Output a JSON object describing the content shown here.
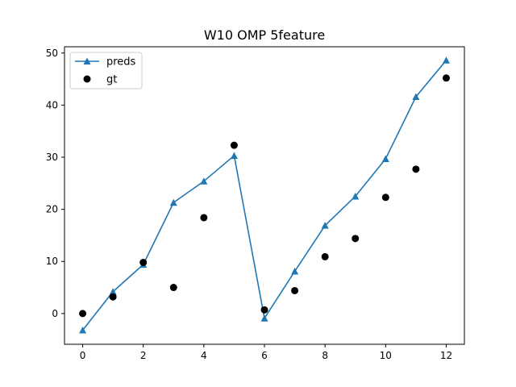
{
  "chart_data": {
    "type": "line",
    "title": "W10 OMP 5feature",
    "xlabel": "",
    "ylabel": "",
    "xlim": [
      -0.6,
      12.6
    ],
    "ylim": [
      -5.9,
      51.2
    ],
    "x_ticks": [
      0,
      2,
      4,
      6,
      8,
      10,
      12
    ],
    "y_ticks": [
      0,
      10,
      20,
      30,
      40,
      50
    ],
    "grid": false,
    "legend_position": "top-left",
    "x": [
      0,
      1,
      2,
      3,
      4,
      5,
      6,
      7,
      8,
      9,
      10,
      11,
      12
    ],
    "series": [
      {
        "name": "preds",
        "style": "line-triangle-markers",
        "color": "#1f77b4",
        "values": [
          -3.2,
          4.2,
          9.4,
          21.3,
          25.4,
          30.3,
          -0.9,
          8.1,
          16.9,
          22.5,
          29.7,
          41.6,
          48.6
        ]
      },
      {
        "name": "gt",
        "style": "scatter-circles",
        "color": "#000000",
        "values": [
          0.0,
          3.2,
          9.8,
          5.0,
          18.4,
          32.3,
          0.7,
          4.4,
          10.9,
          14.4,
          22.3,
          27.7,
          45.2
        ]
      }
    ]
  }
}
